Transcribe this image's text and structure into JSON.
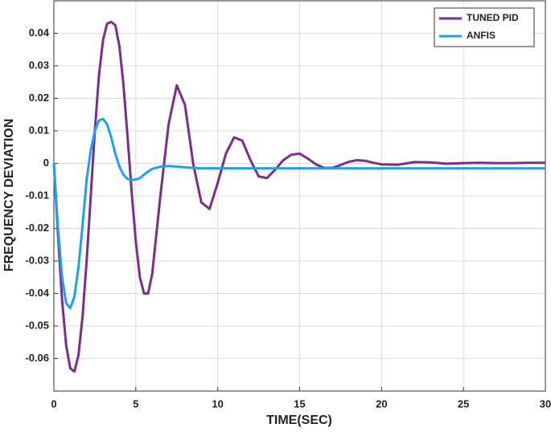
{
  "chart_data": {
    "type": "line",
    "x_label": "TIME(SEC)",
    "y_label": "FREQUENCY DEVIATION",
    "x": [
      0,
      0.25,
      0.5,
      0.75,
      1,
      1.25,
      1.5,
      1.75,
      2,
      2.25,
      2.5,
      2.75,
      3,
      3.25,
      3.5,
      3.75,
      4,
      4.25,
      4.5,
      4.75,
      5,
      5.25,
      5.5,
      5.75,
      6,
      6.5,
      7,
      7.5,
      8,
      8.5,
      9,
      9.5,
      10,
      10.5,
      11,
      11.5,
      12,
      12.5,
      13,
      13.5,
      14,
      14.5,
      15,
      15.5,
      16,
      16.5,
      17,
      17.5,
      18,
      18.5,
      19,
      19.5,
      20,
      21,
      22,
      23,
      24,
      25,
      26,
      27,
      28,
      29,
      30
    ],
    "series": [
      {
        "name": "TUNED PID",
        "color": "#7b2d8e",
        "values": [
          0,
          -0.022,
          -0.042,
          -0.056,
          -0.063,
          -0.064,
          -0.059,
          -0.047,
          -0.03,
          -0.01,
          0.01,
          0.027,
          0.038,
          0.043,
          0.0435,
          0.0425,
          0.036,
          0.024,
          0.008,
          -0.009,
          -0.024,
          -0.035,
          -0.04,
          -0.04,
          -0.034,
          -0.01,
          0.012,
          0.024,
          0.018,
          0,
          -0.012,
          -0.014,
          -0.006,
          0.003,
          0.008,
          0.007,
          0.001,
          -0.004,
          -0.0045,
          -0.002,
          0.001,
          0.0027,
          0.003,
          0.0015,
          -0.0003,
          -0.0014,
          -0.0014,
          -0.0005,
          0.0005,
          0.001,
          0.0008,
          0.0002,
          -0.0003,
          -0.0004,
          0.0004,
          0.0003,
          -0.0001,
          0.0001,
          0.0002,
          0.0001,
          0.0001,
          0.0002,
          0.0002
        ]
      },
      {
        "name": "ANFIS",
        "color": "#1ea0f0",
        "values": [
          0,
          -0.02,
          -0.035,
          -0.043,
          -0.0445,
          -0.041,
          -0.032,
          -0.019,
          -0.005,
          0.004,
          0.01,
          0.0132,
          0.0137,
          0.012,
          0.008,
          0.003,
          -0.001,
          -0.0035,
          -0.0048,
          -0.005,
          -0.005,
          -0.0045,
          -0.0035,
          -0.0025,
          -0.0017,
          -0.001,
          -0.0008,
          -0.001,
          -0.0012,
          -0.0014,
          -0.0015,
          -0.0015,
          -0.0015,
          -0.0015,
          -0.0015,
          -0.0015,
          -0.0015,
          -0.0015,
          -0.0015,
          -0.0015,
          -0.0015,
          -0.0015,
          -0.0015,
          -0.0015,
          -0.0015,
          -0.0015,
          -0.0015,
          -0.0015,
          -0.0015,
          -0.0015,
          -0.0015,
          -0.0015,
          -0.0015,
          -0.0015,
          -0.0015,
          -0.0015,
          -0.0015,
          -0.0015,
          -0.0015,
          -0.0015,
          -0.0015,
          -0.0015,
          -0.0015
        ]
      }
    ],
    "xlim": [
      0,
      30
    ],
    "xticks": [
      0,
      5,
      10,
      15,
      20,
      25,
      30
    ],
    "ylim": [
      -0.07,
      0.05
    ],
    "yticks": [
      -0.06,
      -0.05,
      -0.04,
      -0.03,
      -0.02,
      -0.01,
      0,
      0.01,
      0.02,
      0.03,
      0.04
    ],
    "grid": true,
    "legend": "upper right"
  }
}
